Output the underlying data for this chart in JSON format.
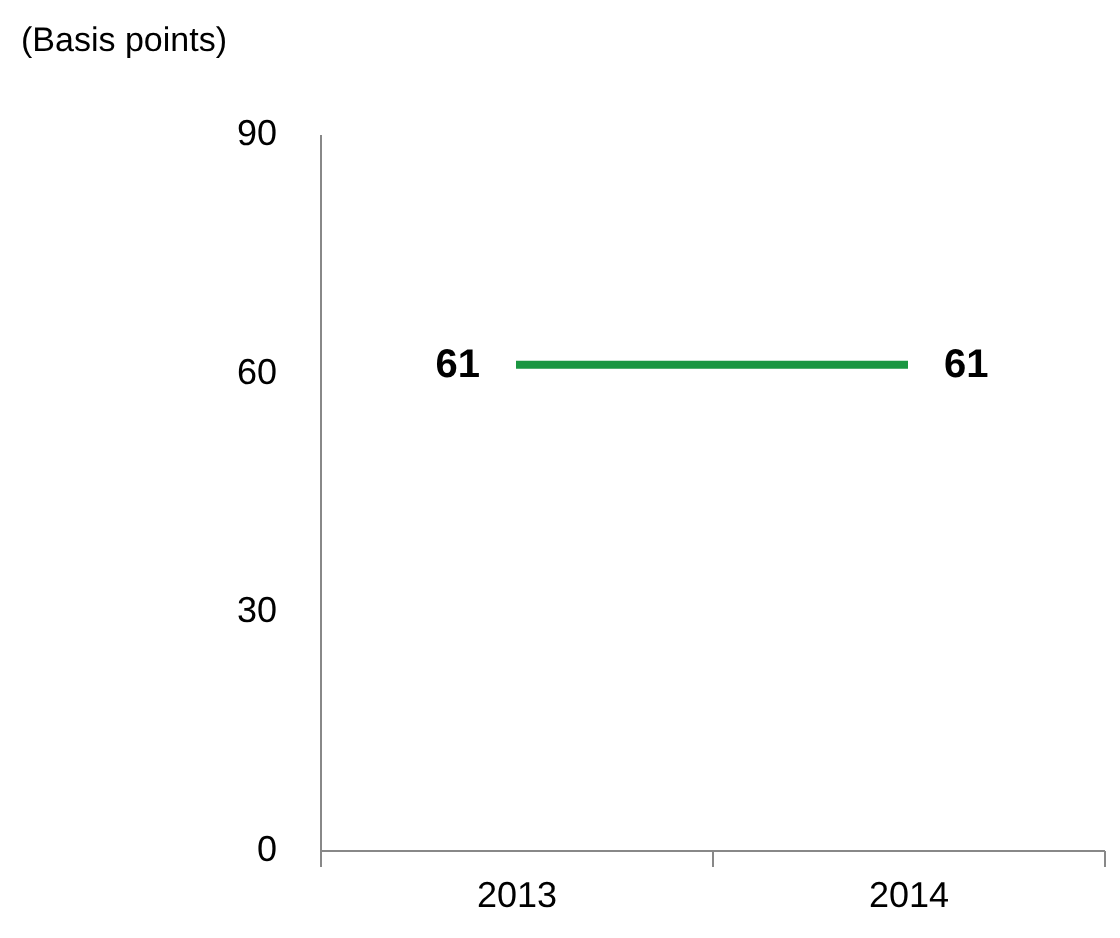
{
  "chart_data": {
    "type": "line",
    "ylabel": "(Basis points)",
    "categories": [
      "2013",
      "2014"
    ],
    "series": [
      {
        "color": "#1a9641",
        "values": [
          61,
          61
        ]
      }
    ],
    "ylim": [
      0,
      90
    ],
    "yticks": [
      0,
      30,
      60,
      90
    ],
    "data_labels": true,
    "marker": "none",
    "line_style": "solid"
  }
}
